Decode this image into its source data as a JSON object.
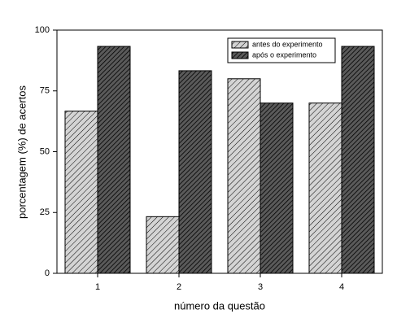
{
  "chart_data": {
    "type": "bar",
    "x_label": "número da questão",
    "y_label": "porcentagem (%) de acertos",
    "categories": [
      "1",
      "2",
      "3",
      "4"
    ],
    "series": [
      {
        "name": "antes do experimento",
        "color": "#d4d4d4",
        "values": [
          66.7,
          23.3,
          80,
          70
        ]
      },
      {
        "name": "após o experimento",
        "color": "#5a5a5a",
        "values": [
          93.3,
          83.3,
          70,
          93.3
        ]
      }
    ],
    "ylim": [
      0,
      100
    ],
    "yticks": [
      0,
      25,
      50,
      75,
      100
    ],
    "legend": "upper right"
  }
}
